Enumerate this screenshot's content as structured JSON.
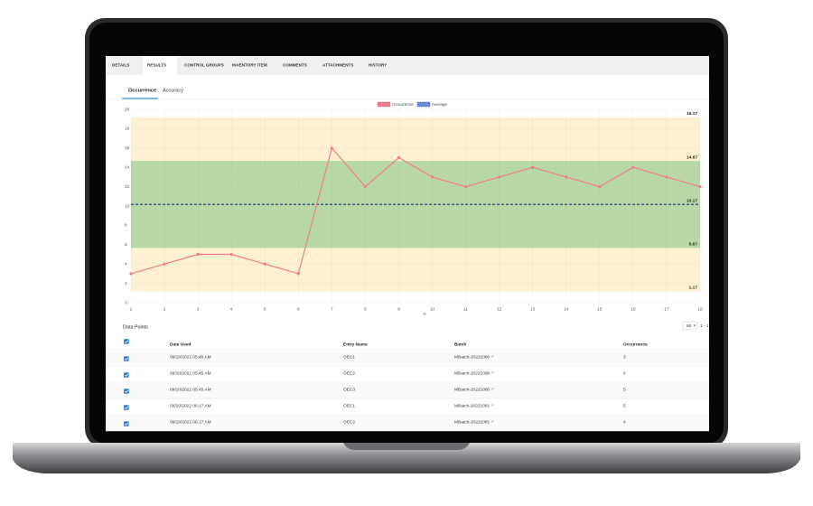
{
  "tabs": [
    "DETAILS",
    "RESULTS",
    "CONTROL GROUPS",
    "INVENTORY ITEM",
    "COMMENTS",
    "ATTACHMENTS",
    "HISTORY"
  ],
  "subtabs": [
    "Occurrence",
    "Accuracy"
  ],
  "chart_data": {
    "type": "line",
    "x": [
      1,
      2,
      3,
      4,
      5,
      6,
      7,
      8,
      9,
      10,
      11,
      12,
      13,
      14,
      15,
      16,
      17,
      18
    ],
    "series": [
      {
        "name": "Occurrence",
        "color": "#f27b8b",
        "values": [
          3,
          4,
          5,
          5,
          4,
          3,
          16,
          12,
          15,
          13,
          12,
          13,
          14,
          13,
          12,
          14,
          13,
          12
        ]
      }
    ],
    "average": {
      "name": "Average",
      "color": "#1b2b8f",
      "value": 10.17
    },
    "bands": [
      {
        "from": 1.17,
        "to": 19.17,
        "color": "#fdf1cf"
      },
      {
        "from": 5.67,
        "to": 14.67,
        "color": "#b8d9a5"
      }
    ],
    "xlim": [
      1,
      18
    ],
    "xticks": [
      1,
      2,
      3,
      4,
      5,
      6,
      7,
      8,
      9,
      10,
      11,
      12,
      13,
      14,
      15,
      16,
      17,
      18
    ],
    "ylim": [
      0,
      20
    ],
    "yticks": [
      0,
      2,
      4,
      6,
      8,
      10,
      12,
      14,
      16,
      18,
      20
    ],
    "grid": true
  },
  "table": {
    "title": "Data Points",
    "page_size": "50",
    "range": "1 - 1",
    "headers": [
      "Date Used",
      "Entry Name",
      "Batch",
      "Occurrence"
    ],
    "rows": [
      [
        "09/10/2022 05:45 AM",
        "OEC1",
        "MBatch-20221080",
        3
      ],
      [
        "09/10/2022 05:45 AM",
        "OEC2",
        "MBatch-20221080",
        4
      ],
      [
        "09/10/2022 05:45 AM",
        "OEC3",
        "MBatch-20221080",
        5
      ],
      [
        "09/10/2022 06:17 AM",
        "OEC1",
        "MBatch-20221081",
        5
      ],
      [
        "09/10/2022 06:17 AM",
        "OEC2",
        "MBatch-20221081",
        4
      ]
    ]
  }
}
